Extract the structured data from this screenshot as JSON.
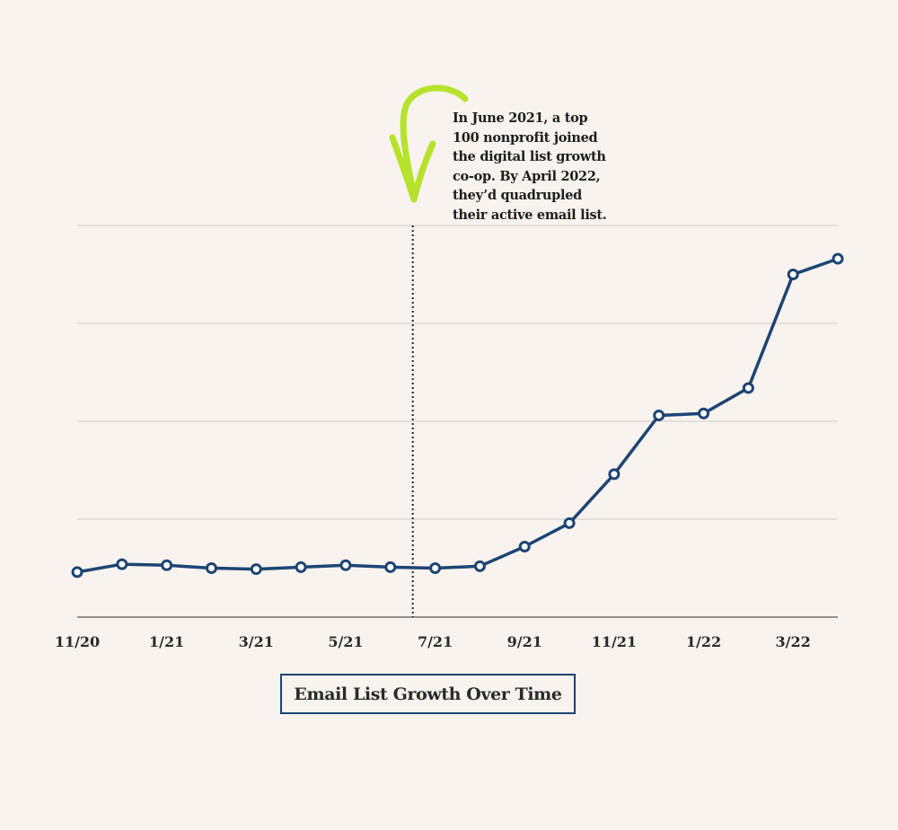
{
  "chart_data": {
    "type": "line",
    "title": "Email List Growth Over Time",
    "xlabel": "",
    "ylabel": "",
    "x_tick_labels": [
      "11/20",
      "1/21",
      "3/21",
      "5/21",
      "7/21",
      "9/21",
      "11/21",
      "1/22",
      "3/22"
    ],
    "x": [
      "11/20",
      "12/20",
      "1/21",
      "2/21",
      "3/21",
      "4/21",
      "5/21",
      "6/21",
      "7/21",
      "8/21",
      "9/21",
      "10/21",
      "11/21",
      "12/21",
      "1/22",
      "2/22",
      "3/22",
      "4/22"
    ],
    "series": [
      {
        "values": [
          0.46,
          0.54,
          0.53,
          0.5,
          0.49,
          0.51,
          0.53,
          0.51,
          0.5,
          0.52,
          0.72,
          0.96,
          1.46,
          2.06,
          2.08,
          2.34,
          3.5,
          3.66
        ]
      }
    ],
    "ylim": [
      0,
      4
    ],
    "y_gridlines": [
      1,
      2,
      3,
      4
    ],
    "y_tick_labels_shown": false,
    "grid": true,
    "legend": "none",
    "annotation": {
      "x": "6/21",
      "text": "In June 2021, a top 100 nonprofit joined the digital list growth co-op. By April 2022, they’d quadrupled their active email list."
    },
    "colors": {
      "line": "#1d4473",
      "marker_fill": "#ffffff",
      "grid": "#cfcbc5",
      "axis": "#444444",
      "arrow": "#b5e22a",
      "background": "#f8f3ee"
    }
  }
}
